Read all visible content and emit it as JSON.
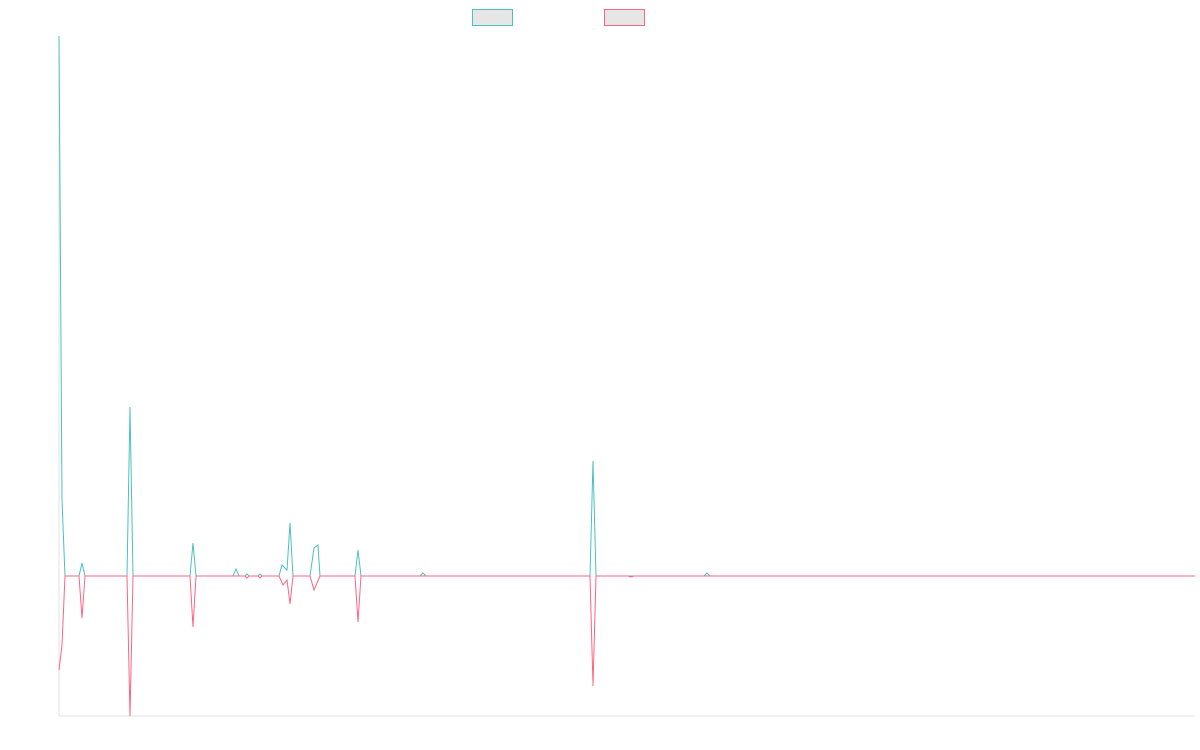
{
  "chart_data": {
    "type": "line",
    "xlim": [
      0,
      1136
    ],
    "ylim": [
      -140,
      540
    ],
    "series": [
      {
        "color": "#4bc0c0",
        "x": [
          0,
          3,
          6,
          20,
          23,
          26,
          68,
          71,
          74,
          131,
          134,
          137,
          174,
          177,
          180,
          186,
          188,
          190,
          199,
          201,
          203,
          220,
          223,
          228,
          231,
          234,
          251,
          255,
          259,
          261,
          296,
          299,
          302,
          361,
          364,
          367,
          531,
          534,
          537,
          645,
          648,
          651,
          1136
        ],
        "values": [
          540,
          76,
          0,
          0,
          13,
          0,
          0,
          169,
          0,
          0,
          33,
          0,
          0,
          7,
          0,
          0,
          2,
          0,
          0,
          2,
          0,
          0,
          11,
          6,
          53,
          0,
          0,
          28,
          31,
          0,
          0,
          26,
          0,
          0,
          3,
          0,
          0,
          115,
          0,
          0,
          3,
          0,
          0
        ]
      },
      {
        "color": "#ff6384",
        "x": [
          0,
          3,
          6,
          20,
          23,
          26,
          68,
          71,
          74,
          131,
          134,
          137,
          186,
          188,
          190,
          199,
          201,
          203,
          220,
          224,
          228,
          231,
          234,
          251,
          255,
          261,
          296,
          299,
          302,
          531,
          534,
          537,
          569,
          572,
          575,
          1136
        ],
        "values": [
          -94,
          -69,
          0,
          0,
          -42,
          0,
          0,
          -140,
          0,
          0,
          -51,
          0,
          0,
          -2,
          0,
          0,
          -2,
          0,
          0,
          -9,
          -4,
          -28,
          0,
          0,
          -14,
          0,
          0,
          -46,
          0,
          0,
          -110,
          0,
          0,
          -1,
          0,
          0
        ]
      }
    ]
  }
}
